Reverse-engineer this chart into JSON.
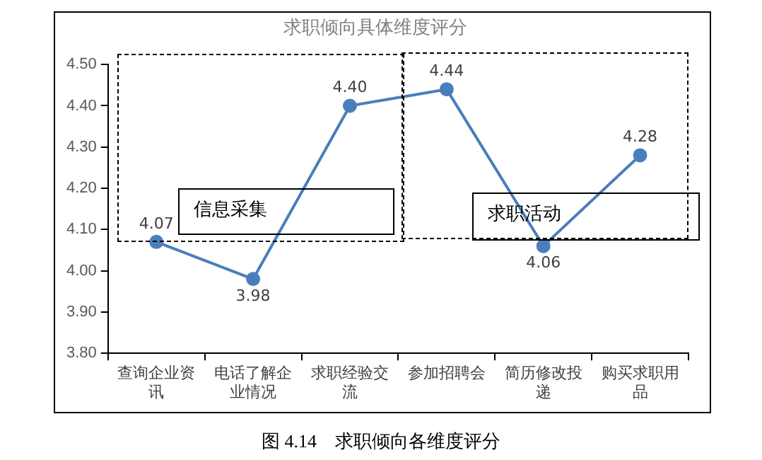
{
  "chart_data": {
    "type": "line",
    "title": "求职倾向具体维度评分",
    "categories": [
      "查询企业资讯",
      "电话了解企业情况",
      "求职经验交流",
      "参加招聘会",
      "简历修改投递",
      "购买求职用品"
    ],
    "values": [
      4.07,
      3.98,
      4.4,
      4.44,
      4.06,
      4.28
    ],
    "color": "#4a7ebb",
    "marker": "circle",
    "value_labels": [
      "4.07",
      "3.98",
      "4.40",
      "4.44",
      "4.06",
      "4.28"
    ],
    "legend": false,
    "grid": false,
    "ylim": [
      3.8,
      4.5
    ],
    "yticks": [
      {
        "value": 3.8,
        "label": "3.80"
      },
      {
        "value": 3.9,
        "label": "3.90"
      },
      {
        "value": 4.0,
        "label": "4.00"
      },
      {
        "value": 4.1,
        "label": "4.10"
      },
      {
        "value": 4.2,
        "label": "4.20"
      },
      {
        "value": 4.3,
        "label": "4.30"
      },
      {
        "value": 4.4,
        "label": "4.40"
      },
      {
        "value": 4.5,
        "label": "4.50"
      }
    ],
    "annotations": [
      "信息采集",
      "求职活动",
      "图 4.14　求职倾向各维度评分"
    ]
  }
}
